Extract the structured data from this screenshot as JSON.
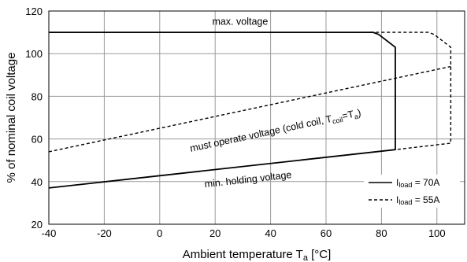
{
  "chart_data": {
    "type": "line",
    "xlabel": "Ambient temperature T",
    "xlabel_sub": "a",
    "xlabel_unit": " [°C]",
    "ylabel": "% of nominal coil voltage",
    "xlim": [
      -40,
      110
    ],
    "ylim": [
      20,
      120
    ],
    "x_ticks": [
      -40,
      -20,
      0,
      20,
      40,
      60,
      80,
      100
    ],
    "y_ticks": [
      20,
      40,
      60,
      80,
      100,
      120
    ],
    "grid": true,
    "legend_position": "bottom-right",
    "series": [
      {
        "name": "I_load = 70A",
        "style": "solid",
        "points": [
          [
            -40,
            110
          ],
          [
            77,
            110
          ],
          [
            79,
            109
          ],
          [
            85,
            103
          ],
          [
            85,
            55
          ],
          [
            -40,
            37
          ]
        ]
      },
      {
        "name": "I_load = 55A",
        "style": "dashed",
        "points": [
          [
            76,
            110
          ],
          [
            97,
            110
          ],
          [
            99,
            109
          ],
          [
            105,
            103
          ],
          [
            105,
            58
          ],
          [
            85,
            55
          ]
        ]
      },
      {
        "name": "must operate voltage",
        "style": "dashed",
        "points": [
          [
            -40,
            54
          ],
          [
            105,
            94
          ]
        ]
      }
    ],
    "annotations": {
      "max_voltage": "max. voltage",
      "must_operate_main": "must operate voltage (cold coil, T",
      "must_operate_sub1": "coil",
      "must_operate_mid": "=T",
      "must_operate_sub2": "a",
      "must_operate_end": ")",
      "min_holding": "min. holding voltage"
    },
    "legend": [
      {
        "prefix": "I",
        "sub": "load",
        "suffix": " = 70A",
        "style": "solid"
      },
      {
        "prefix": "I",
        "sub": "load",
        "suffix": " = 55A",
        "style": "dashed"
      }
    ]
  }
}
